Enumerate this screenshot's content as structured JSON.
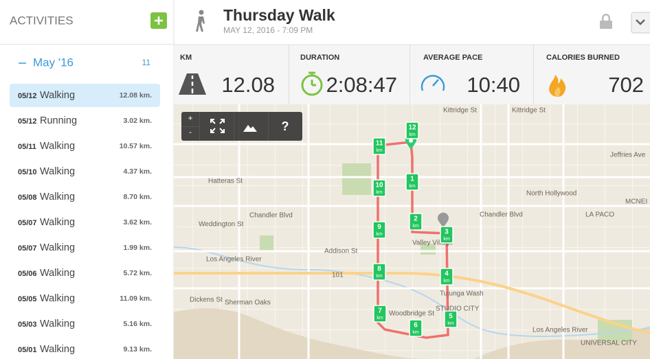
{
  "sidebar": {
    "title": "ACTIVITIES",
    "month": {
      "label": "May '16",
      "count": "11"
    },
    "activities": [
      {
        "date": "05/12",
        "type": "Walking",
        "distance": "12.08 km."
      },
      {
        "date": "05/12",
        "type": "Running",
        "distance": "3.02 km."
      },
      {
        "date": "05/11",
        "type": "Walking",
        "distance": "10.57 km."
      },
      {
        "date": "05/10",
        "type": "Walking",
        "distance": "4.37 km."
      },
      {
        "date": "05/08",
        "type": "Walking",
        "distance": "8.70 km."
      },
      {
        "date": "05/07",
        "type": "Walking",
        "distance": "3.62 km."
      },
      {
        "date": "05/07",
        "type": "Walking",
        "distance": "1.99 km."
      },
      {
        "date": "05/06",
        "type": "Walking",
        "distance": "5.72 km."
      },
      {
        "date": "05/05",
        "type": "Walking",
        "distance": "11.09 km."
      },
      {
        "date": "05/03",
        "type": "Walking",
        "distance": "5.16 km."
      },
      {
        "date": "05/01",
        "type": "Walking",
        "distance": "9.13 km."
      }
    ]
  },
  "header": {
    "title": "Thursday Walk",
    "subtitle": "MAY 12, 2016  -  7:09 PM"
  },
  "stats": [
    {
      "label": "KM",
      "value": "12.08"
    },
    {
      "label": "DURATION",
      "value": "2:08:47"
    },
    {
      "label": "AVERAGE PACE",
      "value": "10:40"
    },
    {
      "label": "CALORIES BURNED",
      "value": "702"
    }
  ],
  "map": {
    "controls": {
      "zoom_in": "+",
      "zoom_out": "-",
      "help": "?"
    },
    "marker_unit": "km",
    "markers": [
      "1",
      "2",
      "3",
      "4",
      "5",
      "6",
      "7",
      "8",
      "9",
      "10",
      "11",
      "12"
    ],
    "labels": [
      "Kittridge St",
      "Kittridge St",
      "Hatteras St",
      "Chandler Blvd",
      "Chandler Blvd",
      "Weddington St",
      "Addison St",
      "Los Angeles River",
      "Valley Village",
      "Tujunga Wash",
      "North Hollywood",
      "LA PACO",
      "MCNEI",
      "Dickens St",
      "Sherman Oaks",
      "Woodbridge St",
      "STUDIO CITY",
      "Los Angeles River",
      "UNIVERSAL CITY",
      "Jeffries Ave",
      "101"
    ]
  }
}
